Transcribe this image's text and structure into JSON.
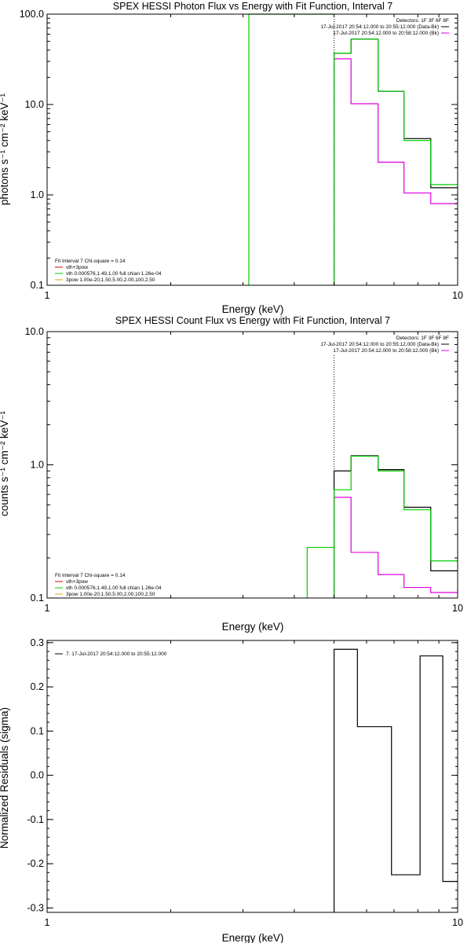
{
  "chart_data": [
    {
      "id": "photon",
      "type": "line",
      "title": "SPEX HESSI Photon Flux vs Energy with Fit Function, Interval 7",
      "xlabel": "Energy (keV)",
      "ylabel": "photons s⁻¹ cm⁻² keV⁻¹",
      "xscale": "log",
      "yscale": "log",
      "xlim": [
        1,
        10
      ],
      "ylim": [
        0.1,
        100
      ],
      "x_ticks": [
        "1",
        "10"
      ],
      "y_ticks": [
        "0.1",
        "1.0",
        "10.0",
        "100.0"
      ],
      "info_lines": [
        "Detectors: 1F 3F 6F 8F",
        "17-Jul-2017 20:54:12.000 to 20:55:12.000 (Data-Bk)",
        "17-Jul-2017 20:54:12.000 to 20:58:12.000 (Bk)"
      ],
      "fit_legend": [
        "Fit Interval  7    Chi-square = 0.14",
        "vth+3pow",
        "vth 0.000576,1.49,1.00   full chian 1.26e-04",
        "3pow 1.00e-20,1.50,5.00,2.00,100,2.50"
      ],
      "edges": [
        5,
        5.5,
        6.4,
        7.4,
        8.6,
        10
      ],
      "series": [
        {
          "name": "Data-Bk",
          "color": "#000000",
          "values": [
            37,
            53,
            14,
            4.2,
            1.2
          ]
        },
        {
          "name": "Bk",
          "color": "#e000e0",
          "values": [
            32,
            10.2,
            2.3,
            1.05,
            0.8
          ]
        },
        {
          "name": "vth+3pow",
          "color": "#00cc00",
          "values": [
            37,
            53,
            14,
            4.0,
            1.3
          ]
        }
      ],
      "green_left_edge": 3.1,
      "green_left_value": 100,
      "marker_x": 5
    },
    {
      "id": "count",
      "type": "line",
      "title": "SPEX HESSI Count Flux vs Energy with Fit Function, Interval 7",
      "xlabel": "Energy (keV)",
      "ylabel": "counts s⁻¹ cm⁻² keV⁻¹",
      "xscale": "log",
      "yscale": "log",
      "xlim": [
        1,
        10
      ],
      "ylim": [
        0.1,
        10
      ],
      "x_ticks": [
        "1",
        "10"
      ],
      "y_ticks": [
        "0.1",
        "1.0",
        "10.0"
      ],
      "info_lines": [
        "Detectors: 1F 3F 6F 8F",
        "17-Jul-2017 20:54:12.000 to 20:55:12.000 (Data-Bk)",
        "17-Jul-2017 20:54:12.000 to 20:58:12.000 (Bk)"
      ],
      "fit_legend": [
        "Fit Interval  7    Chi-square = 0.14",
        "vth+3pow",
        "vth 0.000576,1.49,1.00   full chian 1.26e-04",
        "3pow 1.00e-20,1.50,5.00,2.00,100,2.50"
      ],
      "edges": [
        5,
        5.5,
        6.4,
        7.4,
        8.6,
        10
      ],
      "series": [
        {
          "name": "Data-Bk",
          "color": "#000000",
          "values": [
            0.9,
            1.17,
            0.92,
            0.48,
            0.16
          ]
        },
        {
          "name": "Bk",
          "color": "#e000e0",
          "values": [
            0.57,
            0.22,
            0.15,
            0.12,
            0.11
          ]
        },
        {
          "name": "vth+3pow",
          "color": "#00cc00",
          "values": [
            0.65,
            1.16,
            0.9,
            0.46,
            0.19
          ]
        }
      ],
      "green_pre_edges": [
        4.3,
        5
      ],
      "green_pre_value": 0.24,
      "marker_x": 5
    },
    {
      "id": "resid",
      "type": "line",
      "xlabel": "Energy (keV)",
      "ylabel": "Normalized Residuals (sigma)",
      "xscale": "log",
      "yscale": "linear",
      "xlim": [
        1,
        10
      ],
      "ylim": [
        -0.31,
        0.305
      ],
      "x_ticks": [
        "1",
        "10"
      ],
      "y_ticks": [
        "-0.3",
        "-0.2",
        "-0.1",
        "0.0",
        "0.1",
        "0.2",
        "0.3"
      ],
      "legend": "7. 17-Jul-2017 20:54:12.000 to 20:55:12.000",
      "edges": [
        5,
        5.7,
        6.9,
        8.1,
        9.2,
        10
      ],
      "values": [
        0.285,
        0.11,
        -0.225,
        0.27,
        -0.24
      ]
    }
  ]
}
